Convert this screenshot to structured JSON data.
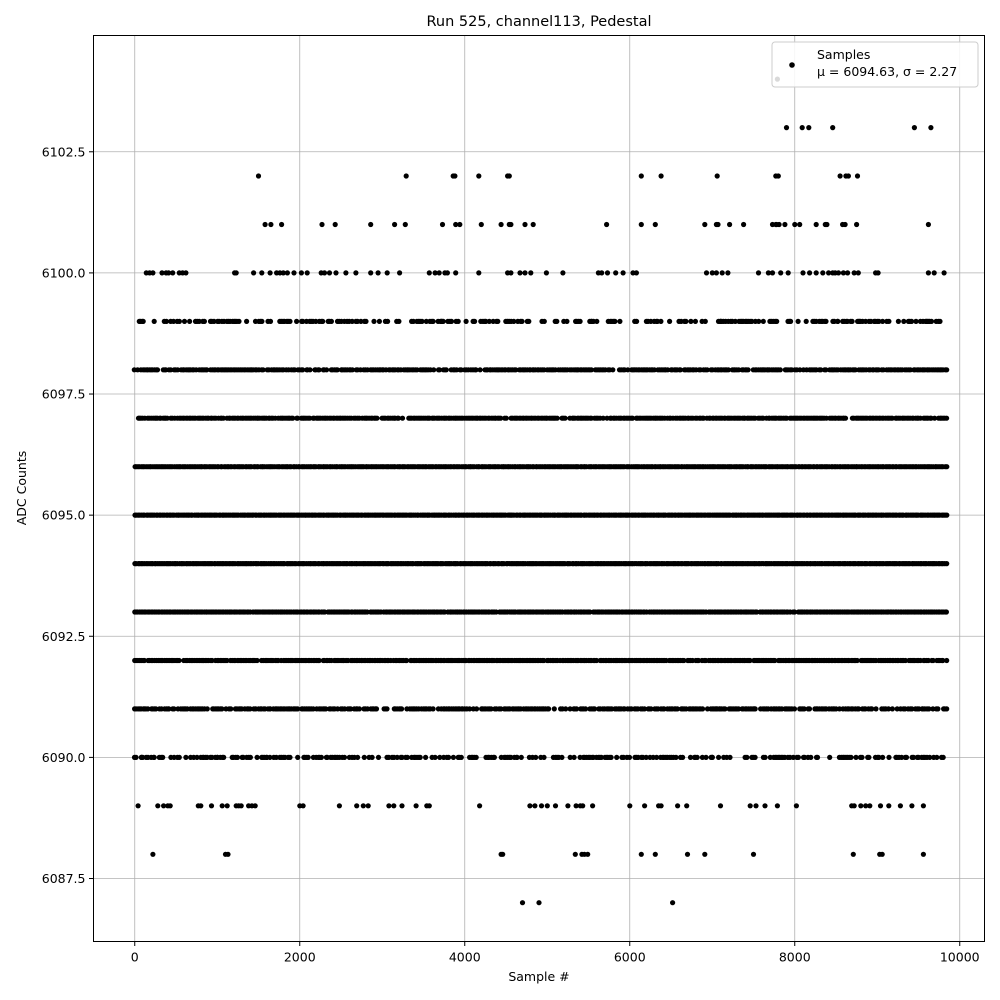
{
  "chart_data": {
    "type": "scatter",
    "title": "Run 525, channel113, Pedestal",
    "xlabel": "Sample #",
    "ylabel": "ADC Counts",
    "xlim": [
      -500,
      10300
    ],
    "ylim": [
      6086.2,
      6104.9
    ],
    "xticks": [
      0,
      2000,
      4000,
      6000,
      8000,
      10000
    ],
    "xtick_labels": [
      "0",
      "2000",
      "4000",
      "6000",
      "8000",
      "10000"
    ],
    "yticks": [
      6087.5,
      6090.0,
      6092.5,
      6095.0,
      6097.5,
      6100.0,
      6102.5
    ],
    "ytick_labels": [
      "6087.5",
      "6090.0",
      "6092.5",
      "6095.0",
      "6097.5",
      "6100.0",
      "6102.5"
    ],
    "grid": true,
    "legend": {
      "placement": "top-right",
      "entries": [
        "Samples",
        "μ = 6094.63, σ = 2.27"
      ]
    },
    "series": [
      {
        "name": "Samples",
        "color": "#000000",
        "marker": "circle",
        "n_samples": 9830,
        "mean": 6094.63,
        "sigma": 2.27,
        "levels": [
          {
            "y": 6087,
            "x": [
              4700,
              4900,
              6520
            ]
          },
          {
            "y": 6088,
            "x": [
              220,
              1100,
              1130,
              4440,
              4460,
              5340,
              5420,
              5450,
              5490,
              6140,
              6310,
              6700,
              6910,
              7500,
              8710,
              9030,
              9060,
              9560
            ]
          },
          {
            "y": 6089,
            "x": [
              40,
              280,
              350,
              400,
              430,
              770,
              800,
              930,
              1060,
              1120,
              1230,
              1260,
              1290,
              1380,
              1420,
              1460,
              2000,
              2040,
              2480,
              2690,
              2770,
              2830,
              3080,
              3140,
              3240,
              3410,
              3540,
              3570,
              4180,
              4790,
              4850,
              4930,
              5000,
              5100,
              5250,
              5350,
              5400,
              5430,
              5550,
              6000,
              6180,
              6350,
              6380,
              6580,
              6690,
              7100,
              7460,
              7530,
              7640,
              7790,
              8020,
              8690,
              8720,
              8800,
              8860,
              8910,
              9040,
              9140,
              9280,
              9420,
              9560
            ]
          },
          {
            "y": 6090,
            "x_range": [
              0,
              9800
            ],
            "density": 0.55,
            "seed": 11,
            "extra_x": [
              80,
              230,
              540,
              1000,
              1600,
              2050,
              4630,
              6530,
              7000,
              7420,
              7520,
              8620
            ]
          },
          {
            "y": 6091,
            "x_range": [
              0,
              9840
            ],
            "density": 0.75,
            "seed": 12,
            "extra_x": [
              1640,
              2930,
              6860,
              7050,
              7510
            ]
          },
          {
            "y": 6092,
            "x_range": [
              0,
              9840
            ],
            "density": 0.95,
            "seed": 13
          },
          {
            "y": 6093,
            "x_range": [
              0,
              9840
            ],
            "density": 0.98,
            "seed": 14
          },
          {
            "y": 6094,
            "x_range": [
              0,
              9840
            ],
            "density": 1.0,
            "seed": 15
          },
          {
            "y": 6095,
            "x_range": [
              0,
              9840
            ],
            "density": 1.0,
            "seed": 16
          },
          {
            "y": 6096,
            "x_range": [
              0,
              9840
            ],
            "density": 1.0,
            "seed": 17
          },
          {
            "y": 6097,
            "x_range": [
              40,
              9840
            ],
            "density": 0.93,
            "seed": 18
          },
          {
            "y": 6098,
            "x_range": [
              0,
              9840
            ],
            "density": 0.8,
            "seed": 19
          },
          {
            "y": 6099,
            "x_range": [
              60,
              9780
            ],
            "density": 0.5,
            "seed": 20,
            "extra_x": [
              70,
              90,
              470,
              3720,
              4400,
              5540,
              7100,
              7950,
              8520,
              8780,
              9470,
              9600
            ]
          },
          {
            "y": 6100,
            "x": [
              140,
              180,
              220,
              330,
              380,
              410,
              460,
              540,
              580,
              620,
              1210,
              1230,
              1440,
              1540,
              1640,
              1720,
              1760,
              1800,
              1850,
              1930,
              2020,
              2090,
              2260,
              2300,
              2360,
              2440,
              2560,
              2680,
              2860,
              2950,
              3060,
              3210,
              3570,
              3640,
              3690,
              3760,
              3790,
              3890,
              4170,
              4520,
              4560,
              4670,
              4730,
              4800,
              4990,
              5190,
              5620,
              5660,
              5730,
              5830,
              5920,
              6040,
              6080,
              6930,
              7000,
              7050,
              7120,
              7190,
              7560,
              7680,
              7730,
              7830,
              7920,
              8100,
              8180,
              8260,
              8340,
              8410,
              8460,
              8490,
              8530,
              8590,
              8640,
              8720,
              8770,
              8980,
              9010,
              9620,
              9690,
              9810
            ]
          },
          {
            "y": 6101,
            "x": [
              1580,
              1650,
              1780,
              2270,
              2430,
              2860,
              3150,
              3280,
              3730,
              3890,
              3940,
              4200,
              4440,
              4540,
              4560,
              4730,
              4830,
              5720,
              6140,
              6310,
              6910,
              7050,
              7070,
              7210,
              7380,
              7730,
              7770,
              7780,
              7810,
              7880,
              8000,
              8060,
              8260,
              8370,
              8390,
              8580,
              8610,
              8750,
              9620
            ]
          },
          {
            "y": 6102,
            "x": [
              1500,
              3290,
              3860,
              3880,
              4170,
              4520,
              4540,
              6140,
              6380,
              7060,
              7770,
              7800,
              8550,
              8620,
              8650,
              8760
            ]
          },
          {
            "y": 6103,
            "x": [
              7900,
              8090,
              8170,
              8460,
              9450,
              9650
            ]
          },
          {
            "y": 6104,
            "x": [
              7790
            ]
          }
        ]
      }
    ]
  }
}
